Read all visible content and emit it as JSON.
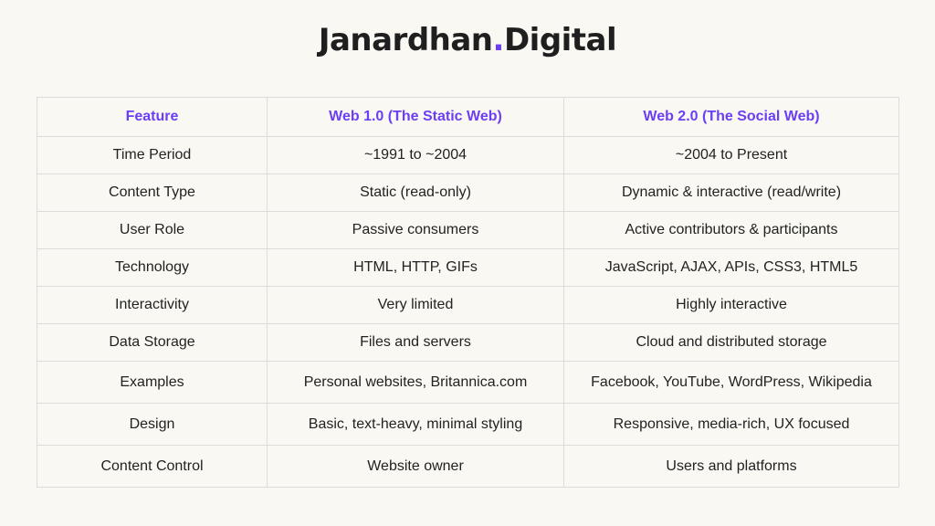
{
  "brand": {
    "name": "Janardhan",
    "dot": ".",
    "suffix": "Digital",
    "accent_color": "#6c3ef4"
  },
  "table": {
    "headers": [
      "Feature",
      "Web 1.0 (The Static Web)",
      "Web 2.0 (The Social Web)"
    ],
    "rows": [
      [
        "Time Period",
        "~1991 to ~2004",
        "~2004 to Present"
      ],
      [
        "Content Type",
        "Static (read-only)",
        "Dynamic & interactive (read/write)"
      ],
      [
        "User Role",
        "Passive consumers",
        "Active contributors & participants"
      ],
      [
        "Technology",
        "HTML, HTTP, GIFs",
        "JavaScript, AJAX, APIs, CSS3, HTML5"
      ],
      [
        "Interactivity",
        "Very limited",
        "Highly interactive"
      ],
      [
        "Data Storage",
        "Files and servers",
        "Cloud and distributed storage"
      ],
      [
        "Examples",
        "Personal websites, Britannica.com",
        "Facebook, YouTube, WordPress, Wikipedia"
      ],
      [
        "Design",
        "Basic, text-heavy, minimal styling",
        "Responsive, media-rich, UX focused"
      ],
      [
        "Content Control",
        "Website owner",
        "Users and platforms"
      ]
    ]
  }
}
